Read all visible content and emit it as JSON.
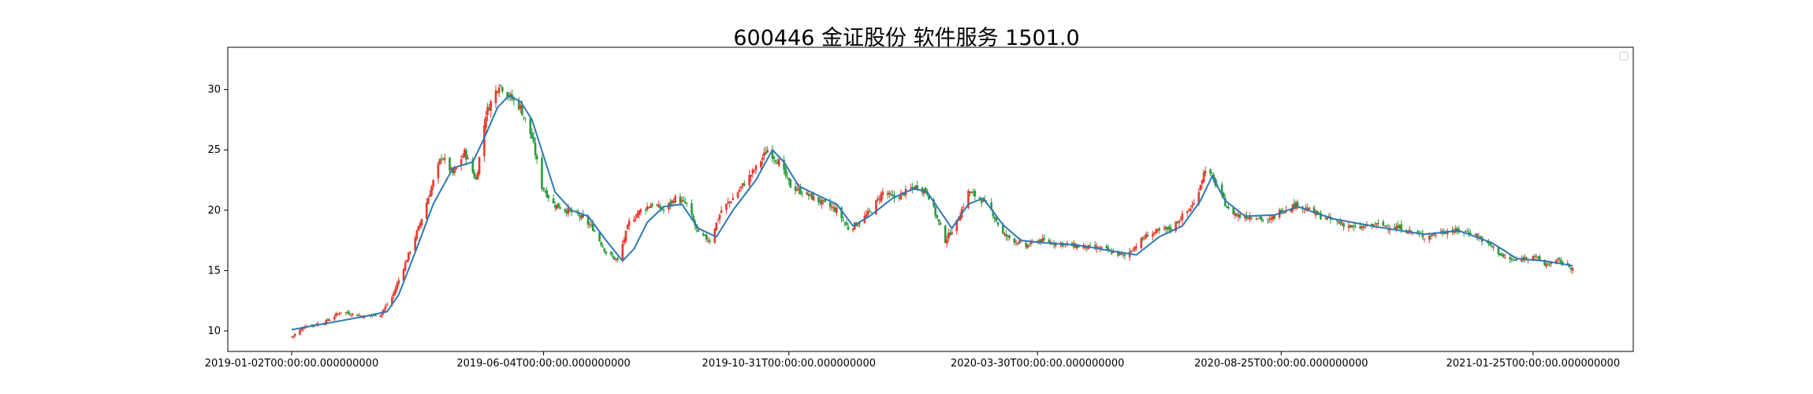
{
  "title": "600446 金证股份 软件服务 1501.0",
  "chart_data": {
    "type": "candlestick",
    "title": "600446 金证股份 软件服务 1501.0",
    "xlabel": "",
    "ylabel": "",
    "x_start": "2019-01-02",
    "x_end": "2021-02-18",
    "ylim": [
      8.3,
      33.5
    ],
    "y_ticks": [
      10,
      15,
      20,
      25,
      30
    ],
    "x_ticks": [
      "2019-01-02T00:00:00.000000000",
      "2019-06-04T00:00:00.000000000",
      "2019-10-31T00:00:00.000000000",
      "2020-03-30T00:00:00.000000000",
      "2020-08-25T00:00:00.000000000",
      "2021-01-25T00:00:00.000000000"
    ],
    "grid": false,
    "legend": "top-right (empty)",
    "up_color": "#e8392e",
    "down_color": "#2a9a3c",
    "ma_color": "#2f78b5",
    "close_series": [
      [
        "2019-01-02",
        9.5
      ],
      [
        "2019-01-10",
        10.4
      ],
      [
        "2019-01-22",
        10.7
      ],
      [
        "2019-02-01",
        11.6
      ],
      [
        "2019-02-15",
        11.2
      ],
      [
        "2019-02-25",
        11.4
      ],
      [
        "2019-03-04",
        12.8
      ],
      [
        "2019-03-12",
        15.6
      ],
      [
        "2019-03-20",
        18.5
      ],
      [
        "2019-03-27",
        21.5
      ],
      [
        "2019-04-03",
        24.5
      ],
      [
        "2019-04-10",
        23.0
      ],
      [
        "2019-04-17",
        24.8
      ],
      [
        "2019-04-24",
        22.5
      ],
      [
        "2019-04-30",
        28.0
      ],
      [
        "2019-05-08",
        30.5
      ],
      [
        "2019-05-14",
        29.5
      ],
      [
        "2019-05-21",
        28.5
      ],
      [
        "2019-05-28",
        26.0
      ],
      [
        "2019-06-03",
        22.0
      ],
      [
        "2019-06-10",
        20.5
      ],
      [
        "2019-06-18",
        20.0
      ],
      [
        "2019-06-26",
        19.5
      ],
      [
        "2019-07-04",
        18.5
      ],
      [
        "2019-07-12",
        16.5
      ],
      [
        "2019-07-19",
        15.8
      ],
      [
        "2019-07-26",
        19.0
      ],
      [
        "2019-08-02",
        20.0
      ],
      [
        "2019-08-09",
        20.5
      ],
      [
        "2019-08-16",
        20.0
      ],
      [
        "2019-08-23",
        21.0
      ],
      [
        "2019-08-30",
        20.5
      ],
      [
        "2019-09-06",
        18.0
      ],
      [
        "2019-09-13",
        17.5
      ],
      [
        "2019-09-20",
        20.0
      ],
      [
        "2019-09-27",
        21.0
      ],
      [
        "2019-10-11",
        23.5
      ],
      [
        "2019-10-18",
        25.0
      ],
      [
        "2019-10-25",
        24.0
      ],
      [
        "2019-11-01",
        22.0
      ],
      [
        "2019-11-08",
        21.5
      ],
      [
        "2019-11-15",
        21.0
      ],
      [
        "2019-11-22",
        20.5
      ],
      [
        "2019-11-29",
        20.0
      ],
      [
        "2019-12-06",
        18.5
      ],
      [
        "2019-12-13",
        19.0
      ],
      [
        "2019-12-20",
        20.0
      ],
      [
        "2019-12-27",
        21.5
      ],
      [
        "2020-01-03",
        21.0
      ],
      [
        "2020-01-10",
        21.5
      ],
      [
        "2020-01-17",
        22.0
      ],
      [
        "2020-01-23",
        21.5
      ],
      [
        "2020-02-03",
        17.5
      ],
      [
        "2020-02-10",
        19.0
      ],
      [
        "2020-02-17",
        21.5
      ],
      [
        "2020-02-24",
        21.0
      ],
      [
        "2020-03-02",
        20.0
      ],
      [
        "2020-03-09",
        18.0
      ],
      [
        "2020-03-16",
        17.5
      ],
      [
        "2020-03-23",
        17.0
      ],
      [
        "2020-03-30",
        17.5
      ],
      [
        "2020-04-10",
        17.3
      ],
      [
        "2020-04-24",
        17.0
      ],
      [
        "2020-05-08",
        16.8
      ],
      [
        "2020-05-22",
        16.2
      ],
      [
        "2020-06-05",
        18.0
      ],
      [
        "2020-06-19",
        18.5
      ],
      [
        "2020-07-03",
        20.5
      ],
      [
        "2020-07-10",
        23.5
      ],
      [
        "2020-07-17",
        22.0
      ],
      [
        "2020-07-24",
        20.0
      ],
      [
        "2020-07-31",
        19.5
      ],
      [
        "2020-08-10",
        19.5
      ],
      [
        "2020-08-17",
        19.0
      ],
      [
        "2020-08-25",
        20.0
      ],
      [
        "2020-09-04",
        20.5
      ],
      [
        "2020-09-18",
        19.5
      ],
      [
        "2020-10-09",
        18.5
      ],
      [
        "2020-10-23",
        18.8
      ],
      [
        "2020-11-06",
        18.5
      ],
      [
        "2020-11-20",
        17.8
      ],
      [
        "2020-12-04",
        18.3
      ],
      [
        "2020-12-18",
        18.2
      ],
      [
        "2020-12-31",
        17.0
      ],
      [
        "2021-01-08",
        16.0
      ],
      [
        "2021-01-15",
        15.8
      ],
      [
        "2021-01-25",
        16.3
      ],
      [
        "2021-02-01",
        15.5
      ],
      [
        "2021-02-10",
        15.8
      ],
      [
        "2021-02-18",
        15.2
      ]
    ],
    "ma_series": [
      [
        "2019-01-02",
        10.1
      ],
      [
        "2019-01-22",
        10.6
      ],
      [
        "2019-02-15",
        11.2
      ],
      [
        "2019-03-01",
        11.6
      ],
      [
        "2019-03-08",
        13.0
      ],
      [
        "2019-03-18",
        16.5
      ],
      [
        "2019-03-29",
        20.5
      ],
      [
        "2019-04-10",
        23.5
      ],
      [
        "2019-04-22",
        24.0
      ],
      [
        "2019-04-29",
        26.0
      ],
      [
        "2019-05-07",
        28.5
      ],
      [
        "2019-05-14",
        29.5
      ],
      [
        "2019-05-21",
        29.0
      ],
      [
        "2019-05-28",
        27.5
      ],
      [
        "2019-06-04",
        24.5
      ],
      [
        "2019-06-11",
        21.5
      ],
      [
        "2019-06-21",
        20.0
      ],
      [
        "2019-07-01",
        19.5
      ],
      [
        "2019-07-12",
        17.5
      ],
      [
        "2019-07-22",
        15.8
      ],
      [
        "2019-07-29",
        16.8
      ],
      [
        "2019-08-06",
        19.0
      ],
      [
        "2019-08-16",
        20.3
      ],
      [
        "2019-08-27",
        20.5
      ],
      [
        "2019-09-06",
        18.5
      ],
      [
        "2019-09-17",
        17.8
      ],
      [
        "2019-09-27",
        20.0
      ],
      [
        "2019-10-11",
        22.5
      ],
      [
        "2019-10-21",
        25.0
      ],
      [
        "2019-10-28",
        24.0
      ],
      [
        "2019-11-06",
        22.0
      ],
      [
        "2019-11-18",
        21.2
      ],
      [
        "2019-11-29",
        20.5
      ],
      [
        "2019-12-09",
        18.7
      ],
      [
        "2019-12-19",
        19.5
      ],
      [
        "2020-01-02",
        21.0
      ],
      [
        "2020-01-15",
        21.8
      ],
      [
        "2020-01-23",
        21.5
      ],
      [
        "2020-02-07",
        18.5
      ],
      [
        "2020-02-17",
        20.5
      ],
      [
        "2020-02-26",
        21.0
      ],
      [
        "2020-03-09",
        18.8
      ],
      [
        "2020-03-20",
        17.5
      ],
      [
        "2020-04-03",
        17.3
      ],
      [
        "2020-04-24",
        17.1
      ],
      [
        "2020-05-15",
        16.6
      ],
      [
        "2020-05-29",
        16.3
      ],
      [
        "2020-06-12",
        17.8
      ],
      [
        "2020-06-26",
        18.7
      ],
      [
        "2020-07-07",
        20.8
      ],
      [
        "2020-07-14",
        22.8
      ],
      [
        "2020-07-22",
        20.8
      ],
      [
        "2020-08-03",
        19.5
      ],
      [
        "2020-08-21",
        19.6
      ],
      [
        "2020-09-04",
        20.3
      ],
      [
        "2020-09-25",
        19.3
      ],
      [
        "2020-10-23",
        18.6
      ],
      [
        "2020-11-20",
        18.0
      ],
      [
        "2020-12-11",
        18.3
      ],
      [
        "2020-12-31",
        17.3
      ],
      [
        "2021-01-15",
        16.0
      ],
      [
        "2021-02-01",
        15.8
      ],
      [
        "2021-02-18",
        15.4
      ]
    ]
  }
}
